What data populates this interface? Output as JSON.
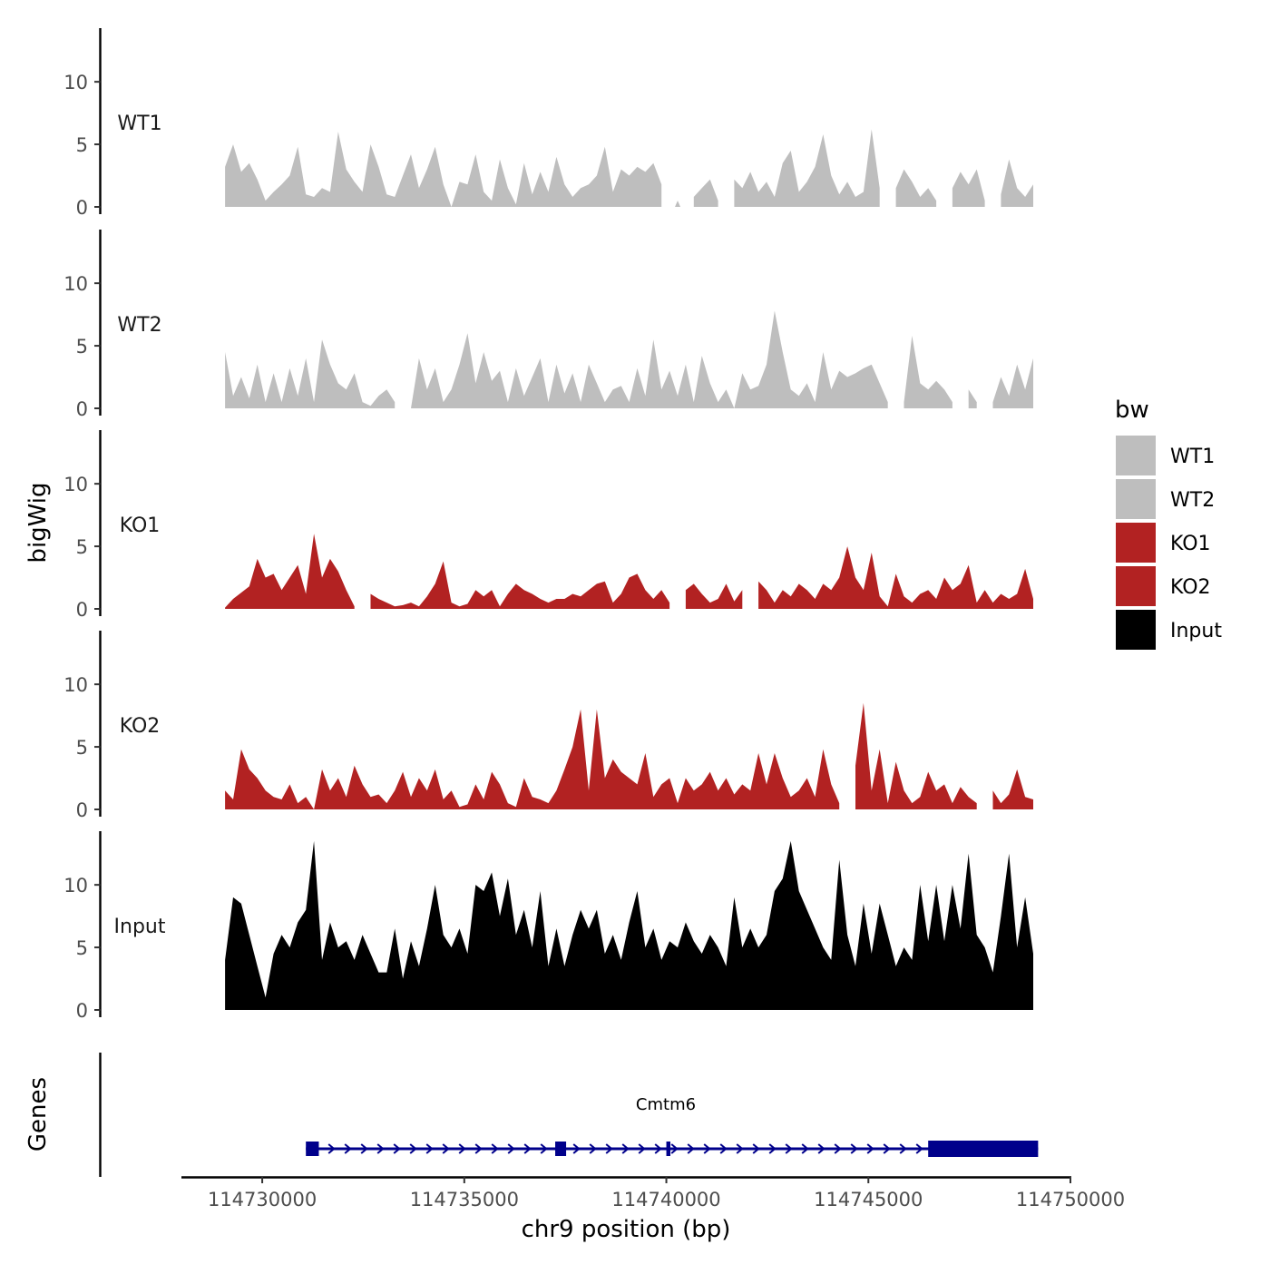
{
  "chart_data": {
    "type": "area",
    "title": "",
    "ylabel": "bigWig",
    "xlabel": "chr9 position (bp)",
    "genes_label": "Genes",
    "x_range": [
      114729080,
      114749200
    ],
    "ylim": [
      0,
      14
    ],
    "y_ticks": [
      0,
      5,
      10
    ],
    "x_ticks": [
      114730000,
      114735000,
      114740000,
      114745000,
      114750000
    ],
    "x_tick_labels": [
      "114730000",
      "114735000",
      "114740000",
      "114745000",
      "114750000"
    ],
    "legend": {
      "title": "bw",
      "position": "right",
      "entries": [
        {
          "label": "WT1",
          "color": "#bebebe"
        },
        {
          "label": "WT2",
          "color": "#bebebe"
        },
        {
          "label": "KO1",
          "color": "#b22222"
        },
        {
          "label": "KO2",
          "color": "#b22222"
        },
        {
          "label": "Input",
          "color": "#000000"
        }
      ]
    },
    "x": [
      114729080,
      114729280,
      114729480,
      114729680,
      114729880,
      114730080,
      114730280,
      114730480,
      114730680,
      114730880,
      114731080,
      114731280,
      114731480,
      114731680,
      114731880,
      114732080,
      114732280,
      114732480,
      114732680,
      114732880,
      114733080,
      114733280,
      114733480,
      114733680,
      114733880,
      114734080,
      114734280,
      114734480,
      114734680,
      114734880,
      114735080,
      114735280,
      114735480,
      114735680,
      114735880,
      114736080,
      114736280,
      114736480,
      114736680,
      114736880,
      114737080,
      114737280,
      114737480,
      114737680,
      114737880,
      114738080,
      114738280,
      114738480,
      114738680,
      114738880,
      114739080,
      114739280,
      114739480,
      114739680,
      114739880,
      114740080,
      114740280,
      114740480,
      114740680,
      114740880,
      114741080,
      114741280,
      114741480,
      114741680,
      114741880,
      114742080,
      114742280,
      114742480,
      114742680,
      114742880,
      114743080,
      114743280,
      114743480,
      114743680,
      114743880,
      114744080,
      114744280,
      114744480,
      114744680,
      114744880,
      114745080,
      114745280,
      114745480,
      114745680,
      114745880,
      114746080,
      114746280,
      114746480,
      114746680,
      114746880,
      114747080,
      114747280,
      114747480,
      114747680,
      114747880,
      114748080,
      114748280,
      114748480,
      114748680,
      114748880,
      114749080
    ],
    "series": [
      {
        "name": "WT1",
        "color": "#bebebe",
        "values": [
          3.2,
          5.0,
          2.8,
          3.5,
          2.2,
          0.5,
          1.2,
          1.8,
          2.5,
          4.8,
          1.0,
          0.8,
          1.5,
          1.2,
          6.0,
          3.0,
          2.0,
          1.2,
          5.0,
          3.2,
          1.0,
          0.8,
          2.5,
          4.2,
          1.5,
          3.0,
          4.8,
          1.8,
          0.0,
          2.0,
          1.8,
          4.2,
          1.2,
          0.5,
          3.8,
          1.5,
          0.2,
          3.5,
          1.0,
          2.8,
          1.2,
          4.0,
          1.8,
          0.8,
          1.5,
          1.8,
          2.5,
          4.8,
          1.2,
          3.0,
          2.5,
          3.2,
          2.8,
          3.5,
          1.8,
          null,
          0.5,
          null,
          0.8,
          1.5,
          2.2,
          0.5,
          null,
          2.2,
          1.5,
          2.8,
          1.2,
          2.0,
          0.8,
          3.5,
          4.5,
          1.2,
          2.0,
          3.2,
          5.8,
          2.5,
          1.0,
          2.0,
          0.8,
          1.2,
          6.2,
          1.5,
          null,
          1.5,
          3.0,
          2.0,
          0.8,
          1.5,
          0.5,
          null,
          1.5,
          2.8,
          1.8,
          3.0,
          0.5,
          null,
          1.0,
          3.8,
          1.5,
          0.8,
          1.8
        ]
      },
      {
        "name": "WT2",
        "color": "#bebebe",
        "values": [
          4.5,
          1.0,
          2.5,
          0.8,
          3.5,
          0.5,
          2.8,
          0.5,
          3.2,
          1.0,
          4.0,
          0.5,
          5.5,
          3.5,
          2.0,
          1.5,
          2.8,
          0.5,
          0.2,
          1.0,
          1.5,
          0.5,
          null,
          0.0,
          4.0,
          1.5,
          3.2,
          0.5,
          1.5,
          3.5,
          6.0,
          2.0,
          4.5,
          2.2,
          3.0,
          0.5,
          3.2,
          1.0,
          2.5,
          4.0,
          0.5,
          3.5,
          1.2,
          2.8,
          0.5,
          3.5,
          2.0,
          0.5,
          1.5,
          1.8,
          0.5,
          3.2,
          1.0,
          5.5,
          1.5,
          3.0,
          1.0,
          3.5,
          0.5,
          4.2,
          2.0,
          0.5,
          1.5,
          0.0,
          2.8,
          1.5,
          1.8,
          3.5,
          7.8,
          4.5,
          1.5,
          1.0,
          2.0,
          0.5,
          4.5,
          1.5,
          3.0,
          2.5,
          2.8,
          3.2,
          3.5,
          2.0,
          0.5,
          null,
          0.5,
          5.8,
          2.0,
          1.5,
          2.2,
          1.5,
          0.5,
          null,
          1.5,
          0.5,
          null,
          0.5,
          2.5,
          1.0,
          3.5,
          1.5,
          4.0
        ]
      },
      {
        "name": "KO1",
        "color": "#b22222",
        "values": [
          0.1,
          0.8,
          1.3,
          1.8,
          4.0,
          2.5,
          2.8,
          1.5,
          2.5,
          3.5,
          1.2,
          6.0,
          2.5,
          4.0,
          3.0,
          1.5,
          0.2,
          null,
          1.2,
          0.8,
          0.5,
          0.2,
          0.3,
          0.5,
          0.2,
          1.0,
          2.0,
          3.8,
          0.5,
          0.2,
          0.4,
          1.5,
          1.0,
          1.5,
          0.2,
          1.2,
          2.0,
          1.5,
          1.2,
          0.8,
          0.5,
          0.8,
          0.8,
          1.2,
          1.0,
          1.5,
          2.0,
          2.2,
          0.5,
          1.2,
          2.5,
          2.8,
          1.5,
          0.8,
          1.5,
          0.5,
          null,
          1.5,
          2.0,
          1.2,
          0.5,
          0.8,
          2.0,
          0.6,
          1.5,
          null,
          2.2,
          1.5,
          0.5,
          1.5,
          1.0,
          2.0,
          1.5,
          0.8,
          2.0,
          1.5,
          2.5,
          5.0,
          2.5,
          1.5,
          4.5,
          1.0,
          0.2,
          2.8,
          1.0,
          0.5,
          1.2,
          1.5,
          0.8,
          2.5,
          1.5,
          2.0,
          3.5,
          0.5,
          1.5,
          0.5,
          1.2,
          0.8,
          1.2,
          3.2,
          0.8
        ]
      },
      {
        "name": "KO2",
        "color": "#b22222",
        "values": [
          1.5,
          0.8,
          4.8,
          3.2,
          2.5,
          1.5,
          1.0,
          0.8,
          2.0,
          0.5,
          1.0,
          0.0,
          3.2,
          1.5,
          2.5,
          1.0,
          3.5,
          2.0,
          1.0,
          1.2,
          0.5,
          1.5,
          3.0,
          1.0,
          2.5,
          1.5,
          3.2,
          0.8,
          1.5,
          0.2,
          0.4,
          2.0,
          0.8,
          3.0,
          2.0,
          0.5,
          0.2,
          2.5,
          1.0,
          0.8,
          0.5,
          1.5,
          3.2,
          5.0,
          8.0,
          1.5,
          8.0,
          2.5,
          4.0,
          3.0,
          2.5,
          2.0,
          4.5,
          1.0,
          2.0,
          2.5,
          0.5,
          2.5,
          1.5,
          2.0,
          3.0,
          1.5,
          2.5,
          1.2,
          2.0,
          1.5,
          4.5,
          2.0,
          4.5,
          2.5,
          1.0,
          1.5,
          2.5,
          1.0,
          4.8,
          2.0,
          0.5,
          null,
          3.5,
          8.5,
          1.5,
          4.8,
          0.5,
          3.8,
          1.5,
          0.5,
          1.0,
          3.0,
          1.5,
          2.0,
          0.5,
          1.8,
          1.0,
          0.5,
          null,
          1.5,
          0.5,
          1.2,
          3.2,
          1.0,
          0.8
        ]
      },
      {
        "name": "Input",
        "color": "#000000",
        "values": [
          4.0,
          9.0,
          8.5,
          6.0,
          3.5,
          1.0,
          4.5,
          6.0,
          5.0,
          7.0,
          8.0,
          13.5,
          4.0,
          7.0,
          5.0,
          5.5,
          4.0,
          6.0,
          4.5,
          3.0,
          3.0,
          6.5,
          2.5,
          5.5,
          3.5,
          6.5,
          10.0,
          6.0,
          5.0,
          6.5,
          4.5,
          10.0,
          9.5,
          11.0,
          7.5,
          10.5,
          6.0,
          8.0,
          5.0,
          9.5,
          3.5,
          6.5,
          3.5,
          6.0,
          8.0,
          6.5,
          8.0,
          4.5,
          6.0,
          4.0,
          7.0,
          9.5,
          5.0,
          6.5,
          4.0,
          5.5,
          5.0,
          7.0,
          5.5,
          4.5,
          6.0,
          5.0,
          3.5,
          9.0,
          5.0,
          6.5,
          5.0,
          6.0,
          9.5,
          10.5,
          13.5,
          9.5,
          8.0,
          6.5,
          5.0,
          4.0,
          12.0,
          6.0,
          3.5,
          8.5,
          4.5,
          8.5,
          6.0,
          3.5,
          5.0,
          4.0,
          10.0,
          5.5,
          10.0,
          5.5,
          10.0,
          6.5,
          12.5,
          6.0,
          5.0,
          3.0,
          7.5,
          12.5,
          5.0,
          9.0,
          4.5
        ]
      }
    ],
    "gene": {
      "name": "Cmtm6",
      "color": "#00008b",
      "start": 114731080,
      "end": 114749200,
      "strand": "+",
      "exons": [
        {
          "start": 114731080,
          "end": 114731400,
          "type": "coding"
        },
        {
          "start": 114737250,
          "end": 114737520,
          "type": "coding"
        },
        {
          "start": 114740000,
          "end": 114740100,
          "type": "coding"
        },
        {
          "start": 114746480,
          "end": 114749200,
          "type": "utr"
        }
      ]
    }
  }
}
